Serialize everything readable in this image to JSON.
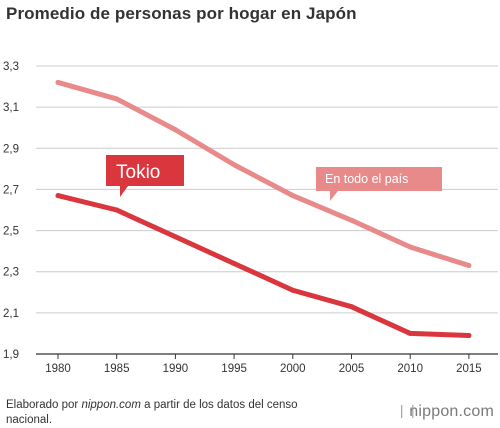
{
  "chart_data": {
    "type": "line",
    "title": "Promedio de personas por hogar en Japón",
    "xlabel": "",
    "ylabel": "",
    "x": [
      1980,
      1985,
      1990,
      1995,
      2000,
      2005,
      2010,
      2015
    ],
    "x_tick_labels": [
      "1980",
      "1985",
      "1990",
      "1995",
      "2000",
      "2005",
      "2010",
      "2015"
    ],
    "y_tick_labels": [
      "3,3",
      "3,1",
      "2,9",
      "2,7",
      "2,5",
      "2,3",
      "2,1",
      "1,9"
    ],
    "y_ticks": [
      3.3,
      3.1,
      2.9,
      2.7,
      2.5,
      2.3,
      2.1,
      1.9
    ],
    "ylim": [
      1.9,
      3.3
    ],
    "grid": true,
    "series": [
      {
        "name": "En todo el país",
        "values": [
          3.22,
          3.14,
          2.99,
          2.82,
          2.67,
          2.55,
          2.42,
          2.33
        ],
        "color": "#e88a8a"
      },
      {
        "name": "Tokio",
        "values": [
          2.67,
          2.6,
          2.47,
          2.34,
          2.21,
          2.13,
          2.0,
          1.99
        ],
        "color": "#d9363e"
      }
    ]
  },
  "footer": {
    "credit_prefix": "Elaborado por ",
    "credit_site": "nippon.com",
    "credit_suffix": " a partir de los datos del censo nacional.",
    "brand": "nippon.com"
  },
  "colors": {
    "grid": "#cccccc",
    "axis": "#333333",
    "label_text": "#ffffff"
  }
}
